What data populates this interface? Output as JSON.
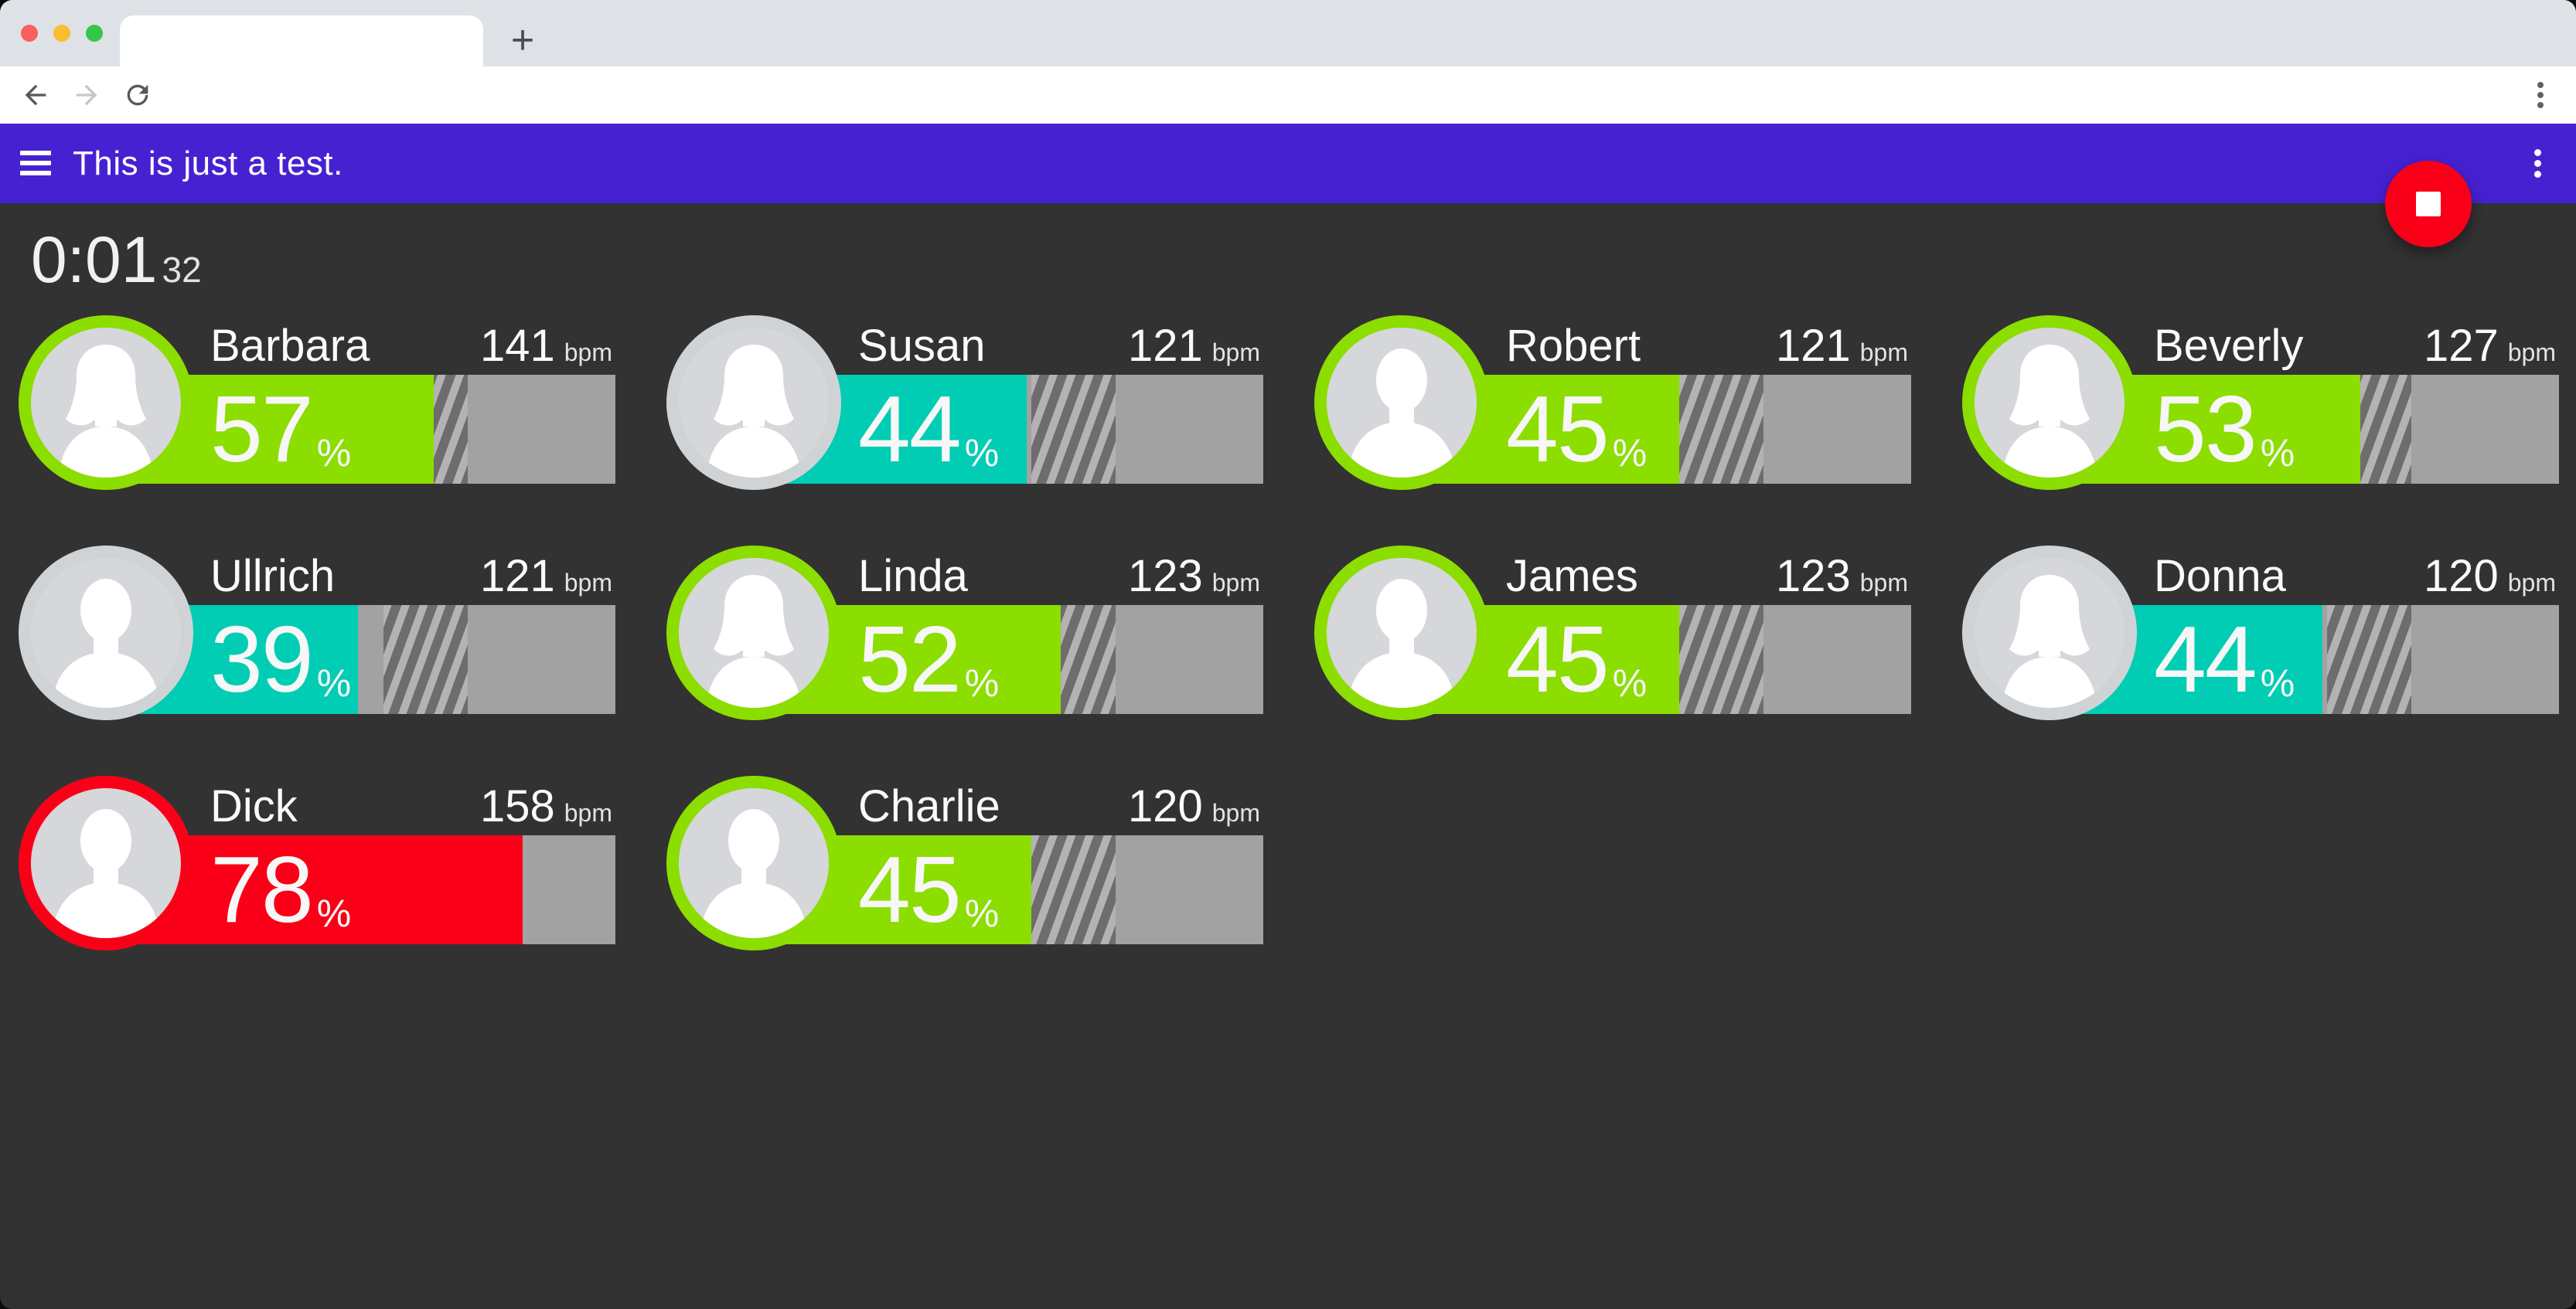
{
  "browser": {
    "tab_title": "",
    "new_tab_label": "+",
    "url_value": ""
  },
  "app_bar": {
    "title": "This is just a test.",
    "background": "#4621d1"
  },
  "fab": {
    "action": "stop",
    "color": "#fa0018"
  },
  "timer": {
    "main": "0:01",
    "fraction": "32"
  },
  "units": {
    "bpm": "bpm",
    "percent": "%"
  },
  "target_zone": {
    "from_pct": 45,
    "to_pct": 65
  },
  "zone_colors": {
    "green": "#8cdd00",
    "teal": "#00cdb4",
    "red": "#fa0018",
    "ring_neutral": "#d0d3d6",
    "bar_gray": "#a2a2a2",
    "hatch_light": "#b3b3b3",
    "hatch_dark": "#6d6d6d"
  },
  "participants": [
    {
      "name": "Barbara",
      "bpm": "141",
      "pct": 57,
      "zone": "green",
      "ring": "green",
      "avatar": "female"
    },
    {
      "name": "Susan",
      "bpm": "121",
      "pct": 44,
      "zone": "teal",
      "ring": "neutral",
      "avatar": "female"
    },
    {
      "name": "Robert",
      "bpm": "121",
      "pct": 45,
      "zone": "green",
      "ring": "green",
      "avatar": "male"
    },
    {
      "name": "Beverly",
      "bpm": "127",
      "pct": 53,
      "zone": "green",
      "ring": "green",
      "avatar": "female"
    },
    {
      "name": "Ullrich",
      "bpm": "121",
      "pct": 39,
      "zone": "teal",
      "ring": "neutral",
      "avatar": "male"
    },
    {
      "name": "Linda",
      "bpm": "123",
      "pct": 52,
      "zone": "green",
      "ring": "green",
      "avatar": "female"
    },
    {
      "name": "James",
      "bpm": "123",
      "pct": 45,
      "zone": "green",
      "ring": "green",
      "avatar": "male"
    },
    {
      "name": "Donna",
      "bpm": "120",
      "pct": 44,
      "zone": "teal",
      "ring": "neutral",
      "avatar": "female"
    },
    {
      "name": "Dick",
      "bpm": "158",
      "pct": 78,
      "zone": "red",
      "ring": "red",
      "avatar": "male"
    },
    {
      "name": "Charlie",
      "bpm": "120",
      "pct": 45,
      "zone": "green",
      "ring": "green",
      "avatar": "male"
    }
  ]
}
